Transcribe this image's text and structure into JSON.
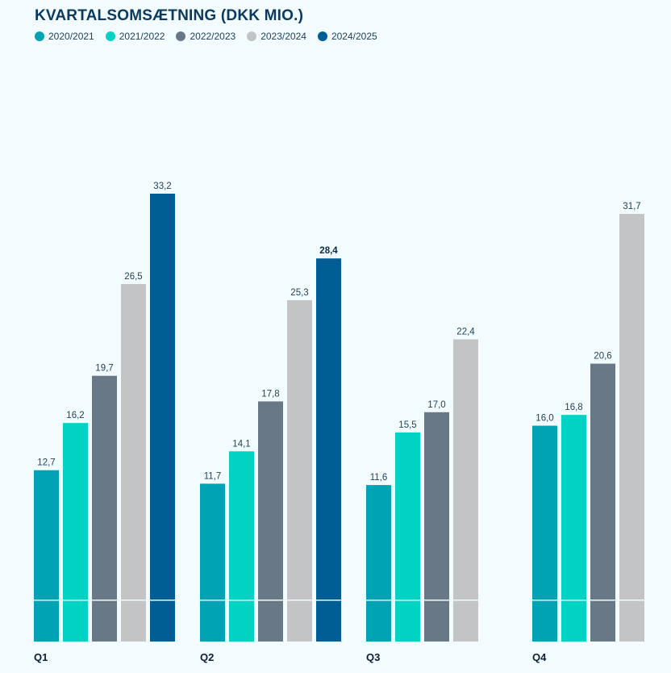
{
  "chart_data": {
    "type": "bar",
    "title": "KVARTALSOMSÆTNING (DKK MIO.)",
    "categories": [
      "Q1",
      "Q2",
      "Q3",
      "Q4"
    ],
    "series": [
      {
        "name": "2020/2021",
        "color": "#00a3b3",
        "values": [
          12.7,
          11.7,
          11.6,
          16.0
        ],
        "labels": [
          "12,7",
          "11,7",
          "11,6",
          "16,0"
        ]
      },
      {
        "name": "2021/2022",
        "color": "#00d3c3",
        "values": [
          16.2,
          14.1,
          15.5,
          16.8
        ],
        "labels": [
          "16,2",
          "14,1",
          "15,5",
          "16,8"
        ]
      },
      {
        "name": "2022/2023",
        "color": "#687887",
        "values": [
          19.7,
          17.8,
          17.0,
          20.6
        ],
        "labels": [
          "19,7",
          "17,8",
          "17,0",
          "20,6"
        ]
      },
      {
        "name": "2023/2024",
        "color": "#c2c4c6",
        "values": [
          26.5,
          25.3,
          22.4,
          31.7
        ],
        "labels": [
          "26,5",
          "25,3",
          "22,4",
          "31,7"
        ]
      },
      {
        "name": "2024/2025",
        "color": "#005e94",
        "values": [
          33.2,
          28.4,
          null,
          null
        ],
        "labels": [
          "33,2",
          "28,4",
          "",
          ""
        ]
      }
    ],
    "highlighted_label": {
      "series": 4,
      "category": 1
    },
    "ylim": [
      0,
      33.2
    ],
    "grid": false,
    "legend_position": "top-left"
  }
}
